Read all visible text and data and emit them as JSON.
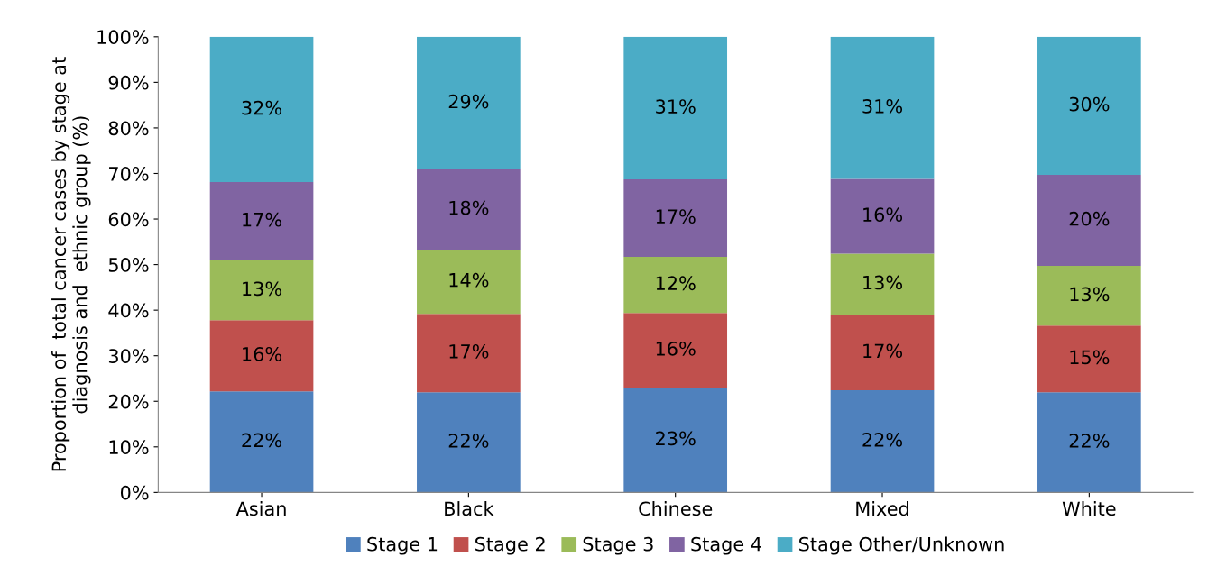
{
  "chart_data": {
    "type": "bar",
    "stacked": true,
    "ylabel": "Proportion of  total cancer cases by stage at\ndiagnosis and  ethnic group (%)",
    "categories": [
      "Asian",
      "Black",
      "Chinese",
      "Mixed",
      "White"
    ],
    "series": [
      {
        "name": "Stage 1",
        "color": "#4f81bd",
        "values": [
          22.2,
          22.0,
          23.0,
          22.4,
          22.0
        ],
        "value_labels": [
          "22%",
          "22%",
          "23%",
          "22%",
          "22%"
        ]
      },
      {
        "name": "Stage 2",
        "color": "#c0504d",
        "values": [
          15.6,
          17.2,
          16.4,
          16.6,
          14.6
        ],
        "value_labels": [
          "16%",
          "17%",
          "16%",
          "17%",
          "15%"
        ]
      },
      {
        "name": "Stage 3",
        "color": "#9bbb59",
        "values": [
          13.1,
          14.1,
          12.3,
          13.4,
          13.1
        ],
        "value_labels": [
          "13%",
          "14%",
          "12%",
          "13%",
          "13%"
        ]
      },
      {
        "name": "Stage 4",
        "color": "#8064a2",
        "values": [
          17.2,
          17.6,
          17.0,
          16.4,
          20.0
        ],
        "value_labels": [
          "17%",
          "18%",
          "17%",
          "16%",
          "20%"
        ]
      },
      {
        "name": "Stage Other/Unknown",
        "color": "#4bacc6",
        "values": [
          31.9,
          29.1,
          31.3,
          31.2,
          30.3
        ],
        "value_labels": [
          "32%",
          "29%",
          "31%",
          "31%",
          "30%"
        ]
      }
    ],
    "ylim": [
      0,
      100
    ],
    "yticks": [
      {
        "value": 0,
        "label": "0%"
      },
      {
        "value": 10,
        "label": "10%"
      },
      {
        "value": 20,
        "label": "20%"
      },
      {
        "value": 30,
        "label": "30%"
      },
      {
        "value": 40,
        "label": "40%"
      },
      {
        "value": 50,
        "label": "50%"
      },
      {
        "value": 60,
        "label": "60%"
      },
      {
        "value": 70,
        "label": "70%"
      },
      {
        "value": 80,
        "label": "80%"
      },
      {
        "value": 90,
        "label": "90%"
      },
      {
        "value": 100,
        "label": "100%"
      }
    ],
    "grid": false,
    "legend": "bottom"
  }
}
